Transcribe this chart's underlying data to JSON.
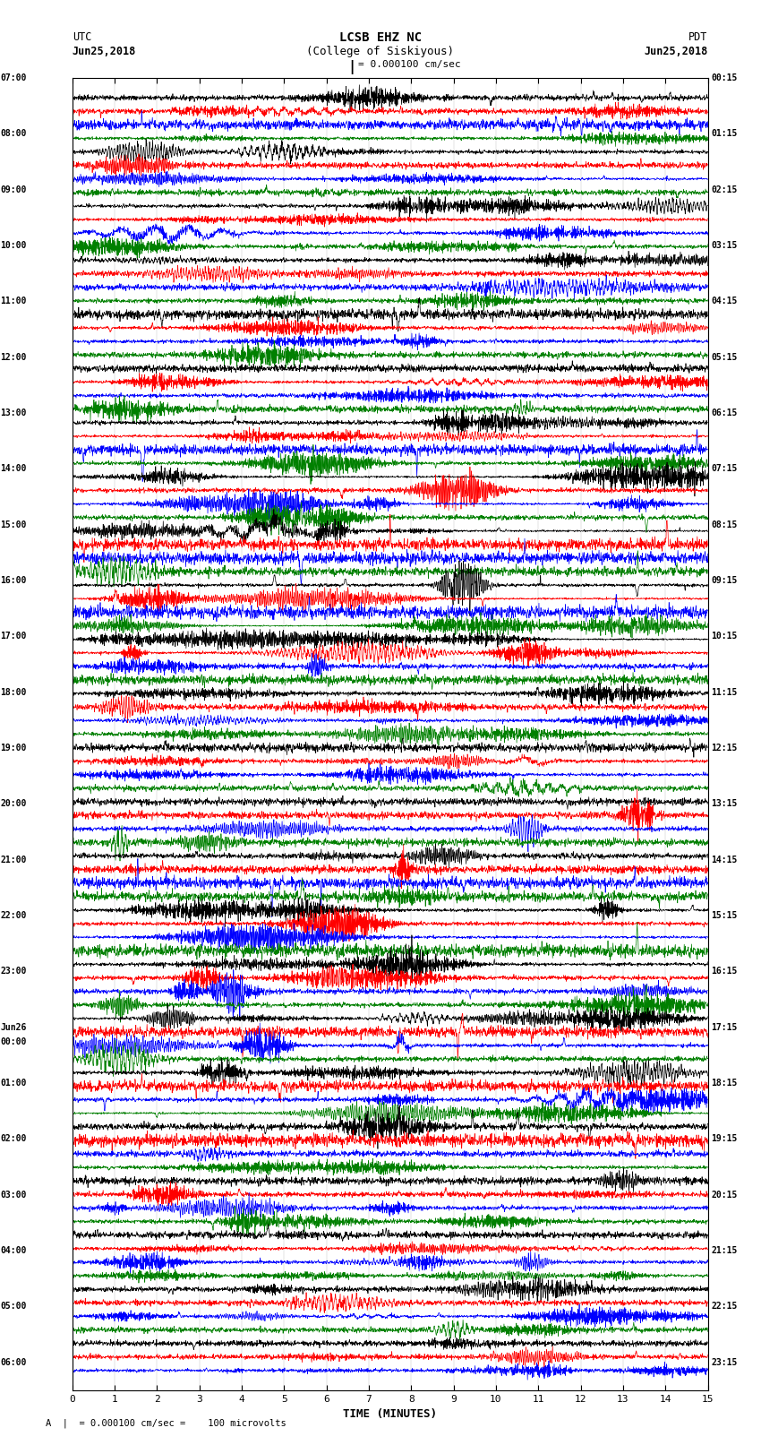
{
  "title_line1": "LCSB EHZ NC",
  "title_line2": "(College of Siskiyous)",
  "scale_text": "= 0.000100 cm/sec",
  "footer_text": "A  |  = 0.000100 cm/sec =    100 microvolts",
  "utc_label": "UTC",
  "utc_date": "Jun25,2018",
  "pdt_label": "PDT",
  "pdt_date": "Jun25,2018",
  "xlabel": "TIME (MINUTES)",
  "left_times_utc": [
    "07:00",
    "",
    "",
    "",
    "08:00",
    "",
    "",
    "",
    "09:00",
    "",
    "",
    "",
    "10:00",
    "",
    "",
    "",
    "11:00",
    "",
    "",
    "",
    "12:00",
    "",
    "",
    "",
    "13:00",
    "",
    "",
    "",
    "14:00",
    "",
    "",
    "",
    "15:00",
    "",
    "",
    "",
    "16:00",
    "",
    "",
    "",
    "17:00",
    "",
    "",
    "",
    "18:00",
    "",
    "",
    "",
    "19:00",
    "",
    "",
    "",
    "20:00",
    "",
    "",
    "",
    "21:00",
    "",
    "",
    "",
    "22:00",
    "",
    "",
    "",
    "23:00",
    "",
    "",
    "",
    "Jun26\n00:00",
    "",
    "",
    "",
    "01:00",
    "",
    "",
    "",
    "02:00",
    "",
    "",
    "",
    "03:00",
    "",
    "",
    "",
    "04:00",
    "",
    "",
    "",
    "05:00",
    "",
    "",
    "",
    "06:00",
    "",
    ""
  ],
  "right_times_pdt": [
    "00:15",
    "",
    "",
    "",
    "01:15",
    "",
    "",
    "",
    "02:15",
    "",
    "",
    "",
    "03:15",
    "",
    "",
    "",
    "04:15",
    "",
    "",
    "",
    "05:15",
    "",
    "",
    "",
    "06:15",
    "",
    "",
    "",
    "07:15",
    "",
    "",
    "",
    "08:15",
    "",
    "",
    "",
    "09:15",
    "",
    "",
    "",
    "10:15",
    "",
    "",
    "",
    "11:15",
    "",
    "",
    "",
    "12:15",
    "",
    "",
    "",
    "13:15",
    "",
    "",
    "",
    "14:15",
    "",
    "",
    "",
    "15:15",
    "",
    "",
    "",
    "16:15",
    "",
    "",
    "",
    "17:15",
    "",
    "",
    "",
    "18:15",
    "",
    "",
    "",
    "19:15",
    "",
    "",
    "",
    "20:15",
    "",
    "",
    "",
    "21:15",
    "",
    "",
    "",
    "22:15",
    "",
    "",
    "",
    "23:15",
    "",
    ""
  ],
  "colors": [
    "black",
    "red",
    "blue",
    "green"
  ],
  "n_rows": 95,
  "xmin": 0,
  "xmax": 15,
  "xticks": [
    0,
    1,
    2,
    3,
    4,
    5,
    6,
    7,
    8,
    9,
    10,
    11,
    12,
    13,
    14,
    15
  ],
  "bg_color": "white",
  "fig_width": 8.5,
  "fig_height": 16.13,
  "dpi": 100
}
